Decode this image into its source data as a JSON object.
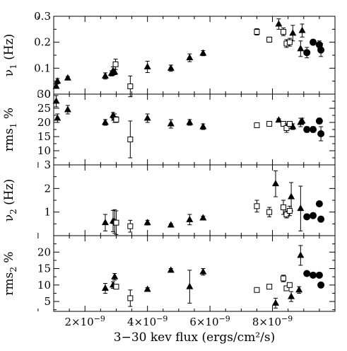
{
  "chart_data": [
    {
      "type": "scatter",
      "ylabel_main": "ν",
      "ylabel_sub": "1",
      "ylabel_tail": " (Hz)",
      "ylim": [
        0,
        0.3
      ],
      "yticks": [
        0,
        0.1,
        0.2,
        0.3
      ],
      "ytick_labels": [
        "0",
        "0.1",
        "0.2",
        "0.3"
      ],
      "series": [
        {
          "marker": "triangle",
          "points": [
            {
              "x": 1.08e-09,
              "y": 0.03,
              "err": 0.008
            },
            {
              "x": 1.12e-09,
              "y": 0.05,
              "err": 0.01
            },
            {
              "x": 1.45e-09,
              "y": 0.062,
              "err": 0.006
            },
            {
              "x": 2.65e-09,
              "y": 0.07,
              "err": 0.012
            },
            {
              "x": 2.85e-09,
              "y": 0.08,
              "err": 0.01
            },
            {
              "x": 2.9e-09,
              "y": 0.09,
              "err": 0.015
            },
            {
              "x": 2.95e-09,
              "y": 0.085,
              "err": 0.01
            },
            {
              "x": 4e-09,
              "y": 0.105,
              "err": 0.022
            },
            {
              "x": 4.75e-09,
              "y": 0.1,
              "err": 0.012
            },
            {
              "x": 5.35e-09,
              "y": 0.14,
              "err": 0.015
            },
            {
              "x": 5.78e-09,
              "y": 0.158,
              "err": 0.01
            },
            {
              "x": 8.2e-09,
              "y": 0.27,
              "err": 0.02
            },
            {
              "x": 8.65e-09,
              "y": 0.235,
              "err": 0.03
            },
            {
              "x": 8.9e-09,
              "y": 0.175,
              "err": 0.03
            },
            {
              "x": 8.95e-09,
              "y": 0.245,
              "err": 0.025
            }
          ]
        },
        {
          "marker": "square",
          "points": [
            {
              "x": 2.98e-09,
              "y": 0.115,
              "err": 0.02
            },
            {
              "x": 3.45e-09,
              "y": 0.03,
              "err": 0.04
            },
            {
              "x": 7.5e-09,
              "y": 0.24,
              "err": 0.012
            },
            {
              "x": 7.9e-09,
              "y": 0.21,
              "err": 0.01
            },
            {
              "x": 8.35e-09,
              "y": 0.24,
              "err": 0.015
            },
            {
              "x": 8.45e-09,
              "y": 0.195,
              "err": 0.015
            },
            {
              "x": 8.55e-09,
              "y": 0.2,
              "err": 0.015
            }
          ]
        },
        {
          "marker": "circle",
          "points": [
            {
              "x": 9.1e-09,
              "y": 0.16,
              "err": 0.02
            },
            {
              "x": 9.3e-09,
              "y": 0.2,
              "err": 0.01
            },
            {
              "x": 9.5e-09,
              "y": 0.19,
              "err": 0.015
            },
            {
              "x": 9.55e-09,
              "y": 0.17,
              "err": 0.025
            }
          ]
        }
      ]
    },
    {
      "type": "scatter",
      "ylabel_main": "rms",
      "ylabel_sub": "1",
      "ylabel_tail": " %",
      "ylim": [
        5,
        30
      ],
      "yticks": [
        10,
        15,
        20,
        25,
        30
      ],
      "ytick_labels": [
        "10",
        "15",
        "20",
        "25",
        "30"
      ],
      "series": [
        {
          "marker": "triangle",
          "points": [
            {
              "x": 1.08e-09,
              "y": 27.5,
              "err": 2.0
            },
            {
              "x": 1.12e-09,
              "y": 21.5,
              "err": 1.5
            },
            {
              "x": 1.45e-09,
              "y": 24.5,
              "err": 1.5
            },
            {
              "x": 2.65e-09,
              "y": 20.0,
              "err": 1.0
            },
            {
              "x": 2.9e-09,
              "y": 22.5,
              "err": 1.0
            },
            {
              "x": 2.95e-09,
              "y": 21.5,
              "err": 1.5
            },
            {
              "x": 4e-09,
              "y": 21.5,
              "err": 1.5
            },
            {
              "x": 4.75e-09,
              "y": 19.5,
              "err": 1.5
            },
            {
              "x": 5.35e-09,
              "y": 20.0,
              "err": 1.0
            },
            {
              "x": 5.78e-09,
              "y": 18.5,
              "err": 1.0
            },
            {
              "x": 8.2e-09,
              "y": 20.8,
              "err": 0.5
            },
            {
              "x": 8.65e-09,
              "y": 18.5,
              "err": 1.0
            },
            {
              "x": 8.9e-09,
              "y": 20.0,
              "err": 1.5
            },
            {
              "x": 8.95e-09,
              "y": 20.5,
              "err": 1.0
            }
          ]
        },
        {
          "marker": "square",
          "points": [
            {
              "x": 3e-09,
              "y": 21.0,
              "err": 1.0
            },
            {
              "x": 3.45e-09,
              "y": 14.0,
              "err": 6.5
            },
            {
              "x": 7.5e-09,
              "y": 19.0,
              "err": 0.5
            },
            {
              "x": 7.9e-09,
              "y": 19.5,
              "err": 0.5
            },
            {
              "x": 8.35e-09,
              "y": 19.5,
              "err": 0.8
            },
            {
              "x": 8.45e-09,
              "y": 18.0,
              "err": 1.5
            },
            {
              "x": 8.55e-09,
              "y": 19.5,
              "err": 0.8
            }
          ]
        },
        {
          "marker": "circle",
          "points": [
            {
              "x": 9.1e-09,
              "y": 17.5,
              "err": 1.0
            },
            {
              "x": 9.3e-09,
              "y": 17.5,
              "err": 1.0
            },
            {
              "x": 9.5e-09,
              "y": 20.5,
              "err": 1.0
            },
            {
              "x": 9.55e-09,
              "y": 16.0,
              "err": 2.5
            }
          ]
        }
      ]
    },
    {
      "type": "scatter",
      "ylabel_main": "ν",
      "ylabel_sub": "2",
      "ylabel_tail": " (Hz)",
      "ylim": [
        0,
        3
      ],
      "yticks": [
        1,
        2,
        3
      ],
      "ytick_labels": [
        "1",
        "2",
        "3"
      ],
      "series": [
        {
          "marker": "triangle",
          "points": [
            {
              "x": 2.65e-09,
              "y": 0.55,
              "err": 0.35
            },
            {
              "x": 2.9e-09,
              "y": 0.62,
              "err": 0.45
            },
            {
              "x": 2.95e-09,
              "y": 0.6,
              "err": 0.5
            },
            {
              "x": 4e-09,
              "y": 0.55,
              "err": 0.1
            },
            {
              "x": 4.75e-09,
              "y": 0.45,
              "err": 0.05
            },
            {
              "x": 5.35e-09,
              "y": 0.68,
              "err": 0.22
            },
            {
              "x": 5.78e-09,
              "y": 0.75,
              "err": 0.08
            },
            {
              "x": 8.1e-09,
              "y": 2.2,
              "err": 0.55
            },
            {
              "x": 8.6e-09,
              "y": 1.65,
              "err": 0.6
            },
            {
              "x": 8.9e-09,
              "y": 1.15,
              "err": 0.95
            }
          ]
        },
        {
          "marker": "square",
          "points": [
            {
              "x": 3e-09,
              "y": 0.55,
              "err": 0.5
            },
            {
              "x": 3.45e-09,
              "y": 0.4,
              "err": 0.25
            },
            {
              "x": 7.5e-09,
              "y": 1.25,
              "err": 0.25
            },
            {
              "x": 7.9e-09,
              "y": 1.0,
              "err": 0.2
            },
            {
              "x": 8.35e-09,
              "y": 1.2,
              "err": 0.3
            },
            {
              "x": 8.45e-09,
              "y": 0.9,
              "err": 0.15
            },
            {
              "x": 8.55e-09,
              "y": 1.05,
              "err": 0.2
            }
          ]
        },
        {
          "marker": "circle",
          "points": [
            {
              "x": 9.1e-09,
              "y": 0.8,
              "err": 0.05
            },
            {
              "x": 9.3e-09,
              "y": 0.85,
              "err": 0.05
            },
            {
              "x": 9.5e-09,
              "y": 1.35,
              "err": 0.1
            },
            {
              "x": 9.55e-09,
              "y": 0.7,
              "err": 0.05
            }
          ]
        }
      ]
    },
    {
      "type": "scatter",
      "ylabel_main": "rms",
      "ylabel_sub": "2",
      "ylabel_tail": " %",
      "ylim": [
        2,
        25
      ],
      "yticks": [
        5,
        10,
        15,
        20
      ],
      "ytick_labels": [
        "5",
        "10",
        "15",
        "20"
      ],
      "xlabel": "3−30 kev flux (ergs/cm²/s)",
      "xlim": [
        1e-09,
        1e-08
      ],
      "xtick_labels": [
        {
          "x": 2e-09,
          "label": "2×10",
          "exp": "−9"
        },
        {
          "x": 4e-09,
          "label": "4×10",
          "exp": "−9"
        },
        {
          "x": 6e-09,
          "label": "6×10",
          "exp": "−9"
        },
        {
          "x": 8e-09,
          "label": "8×10",
          "exp": "−9"
        }
      ],
      "series": [
        {
          "marker": "triangle",
          "points": [
            {
              "x": 2.65e-09,
              "y": 9.0,
              "err": 1.5
            },
            {
              "x": 2.9e-09,
              "y": 10.0,
              "err": 1.0
            },
            {
              "x": 2.95e-09,
              "y": 12.5,
              "err": 1.0
            },
            {
              "x": 4e-09,
              "y": 8.7,
              "err": 0.5
            },
            {
              "x": 4.75e-09,
              "y": 14.5,
              "err": 0.5
            },
            {
              "x": 5.35e-09,
              "y": 9.5,
              "err": 5.0
            },
            {
              "x": 5.78e-09,
              "y": 14.0,
              "err": 1.0
            },
            {
              "x": 8.1e-09,
              "y": 4.5,
              "err": 1.5
            },
            {
              "x": 8.6e-09,
              "y": 6.5,
              "err": 1.5
            },
            {
              "x": 8.85e-09,
              "y": 8.5,
              "err": 1.0
            },
            {
              "x": 8.9e-09,
              "y": 19.0,
              "err": 3.0
            }
          ]
        },
        {
          "marker": "square",
          "points": [
            {
              "x": 3e-09,
              "y": 9.5,
              "err": 0.5
            },
            {
              "x": 3.45e-09,
              "y": 6.0,
              "err": 2.5
            },
            {
              "x": 7.5e-09,
              "y": 8.5,
              "err": 0.5
            },
            {
              "x": 7.9e-09,
              "y": 9.5,
              "err": 0.5
            },
            {
              "x": 8.35e-09,
              "y": 12.0,
              "err": 1.0
            },
            {
              "x": 8.45e-09,
              "y": 9.0,
              "err": 0.5
            },
            {
              "x": 8.55e-09,
              "y": 10.0,
              "err": 0.5
            }
          ]
        },
        {
          "marker": "circle",
          "points": [
            {
              "x": 9.1e-09,
              "y": 13.5,
              "err": 0.3
            },
            {
              "x": 9.3e-09,
              "y": 13.0,
              "err": 0.5
            },
            {
              "x": 9.5e-09,
              "y": 13.0,
              "err": 0.5
            },
            {
              "x": 9.55e-09,
              "y": 10.0,
              "err": 0.8
            }
          ]
        }
      ]
    }
  ]
}
